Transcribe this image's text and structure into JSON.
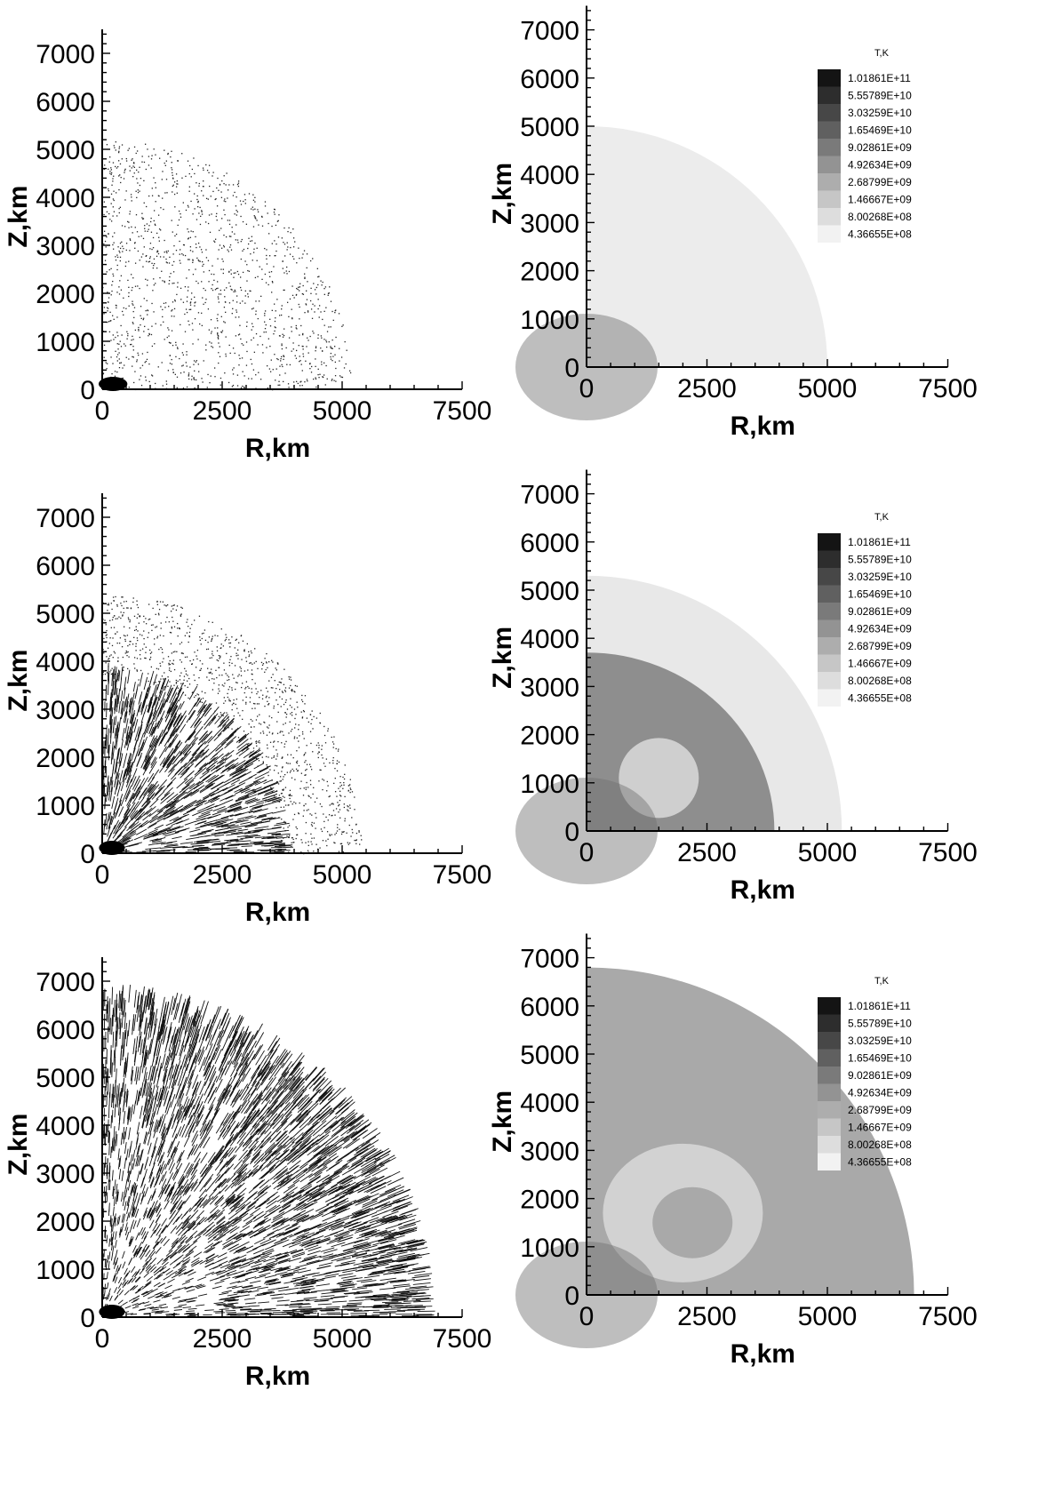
{
  "legend": {
    "title": "T,K",
    "levels": [
      "1.01861E+11",
      "5.55789E+10",
      "3.03259E+10",
      "1.65469E+10",
      "9.02861E+09",
      "4.92634E+09",
      "2.68799E+09",
      "1.46667E+09",
      "8.00268E+08",
      "4.36655E+08"
    ],
    "colors": [
      "#141414",
      "#2d2d2d",
      "#474747",
      "#606060",
      "#7a7a7a",
      "#939393",
      "#adadad",
      "#c6c6c6",
      "#dddddd",
      "#f2f2f2"
    ]
  },
  "chart_data": [
    {
      "type": "scatter",
      "panel": "row1-velocity",
      "xlabel": "R,km",
      "ylabel": "Z,km",
      "xlim": [
        0,
        7500
      ],
      "ylim": [
        0,
        7500
      ],
      "x_ticks": [
        "0",
        "2500",
        "5000",
        "7500"
      ],
      "y_ticks": [
        "0",
        "1000",
        "2000",
        "3000",
        "4000",
        "5000",
        "6000",
        "7000"
      ],
      "front_radius_km": 5200,
      "dense_core_radius_km": 500
    },
    {
      "type": "heatmap",
      "panel": "row1-temperature",
      "xlabel": "R,km",
      "ylabel": "Z,km",
      "xlim": [
        0,
        7500
      ],
      "ylim": [
        0,
        7500
      ],
      "x_ticks": [
        "0",
        "2500",
        "5000",
        "7500"
      ],
      "y_ticks": [
        "0",
        "1000",
        "2000",
        "3000",
        "4000",
        "5000",
        "6000",
        "7000"
      ],
      "outer_shell_radius_km": 5000,
      "background_shade": "#ececec"
    },
    {
      "type": "scatter",
      "panel": "row2-velocity",
      "xlabel": "R,km",
      "ylabel": "Z,km",
      "xlim": [
        0,
        7500
      ],
      "ylim": [
        0,
        7500
      ],
      "x_ticks": [
        "0",
        "2500",
        "5000",
        "7500"
      ],
      "y_ticks": [
        "0",
        "1000",
        "2000",
        "3000",
        "4000",
        "5000",
        "6000",
        "7000"
      ],
      "front_radius_km": 5400,
      "inner_front_radius_km": 3700
    },
    {
      "type": "heatmap",
      "panel": "row2-temperature",
      "xlabel": "R,km",
      "ylabel": "Z,km",
      "xlim": [
        0,
        7500
      ],
      "ylim": [
        0,
        7500
      ],
      "x_ticks": [
        "0",
        "2500",
        "5000",
        "7500"
      ],
      "y_ticks": [
        "0",
        "1000",
        "2000",
        "3000",
        "4000",
        "5000",
        "6000",
        "7000"
      ],
      "outer_shell_radius_km": 5300,
      "inner_front_radius_km": 3900
    },
    {
      "type": "scatter",
      "panel": "row3-velocity",
      "xlabel": "R,km",
      "ylabel": "Z,km",
      "xlim": [
        0,
        7500
      ],
      "ylim": [
        0,
        7500
      ],
      "x_ticks": [
        "0",
        "2500",
        "5000",
        "7500"
      ],
      "y_ticks": [
        "0",
        "1000",
        "2000",
        "3000",
        "4000",
        "5000",
        "6000",
        "7000"
      ],
      "front_radius_km": 6600
    },
    {
      "type": "heatmap",
      "panel": "row3-temperature",
      "xlabel": "R,km",
      "ylabel": "Z,km",
      "xlim": [
        0,
        7500
      ],
      "ylim": [
        0,
        7500
      ],
      "x_ticks": [
        "0",
        "2500",
        "5000",
        "7500"
      ],
      "y_ticks": [
        "0",
        "1000",
        "2000",
        "3000",
        "4000",
        "5000",
        "6000",
        "7000"
      ],
      "outer_shell_radius_km": 6800,
      "shell_shade": "#a9a9a9"
    }
  ]
}
